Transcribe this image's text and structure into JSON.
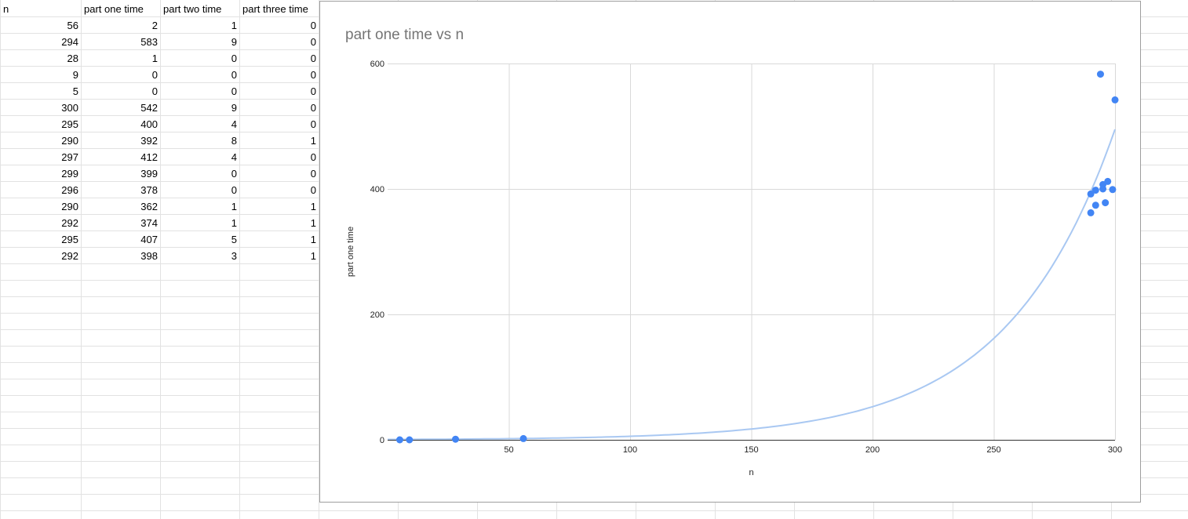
{
  "sheet": {
    "headers": [
      "n",
      "part one time",
      "part two time",
      "part three time"
    ],
    "rows": [
      [
        56,
        2,
        1,
        0
      ],
      [
        294,
        583,
        9,
        0
      ],
      [
        28,
        1,
        0,
        0
      ],
      [
        9,
        0,
        0,
        0
      ],
      [
        5,
        0,
        0,
        0
      ],
      [
        300,
        542,
        9,
        0
      ],
      [
        295,
        400,
        4,
        0
      ],
      [
        290,
        392,
        8,
        1
      ],
      [
        297,
        412,
        4,
        0
      ],
      [
        299,
        399,
        0,
        0
      ],
      [
        296,
        378,
        0,
        0
      ],
      [
        290,
        362,
        1,
        1
      ],
      [
        292,
        374,
        1,
        1
      ],
      [
        295,
        407,
        5,
        1
      ],
      [
        292,
        398,
        3,
        1
      ]
    ]
  },
  "colors": {
    "point": "#4285f4",
    "trendline": "#a9c8f2",
    "gridline": "#d9d9d9",
    "axis": "#333333",
    "title": "#757575",
    "cell_border": "#e2e2e2"
  },
  "chart_data": {
    "type": "scatter",
    "title": "part one time vs n",
    "xlabel": "n",
    "ylabel": "part one time",
    "xlim": [
      0,
      300
    ],
    "ylim": [
      0,
      600
    ],
    "x_ticks": [
      50,
      100,
      150,
      200,
      250,
      300
    ],
    "y_ticks": [
      0,
      200,
      400,
      600
    ],
    "grid": true,
    "legend": "none",
    "series": [
      {
        "points": [
          [
            56,
            2
          ],
          [
            294,
            583
          ],
          [
            28,
            1
          ],
          [
            9,
            0
          ],
          [
            5,
            0
          ],
          [
            300,
            542
          ],
          [
            295,
            400
          ],
          [
            290,
            392
          ],
          [
            297,
            412
          ],
          [
            299,
            399
          ],
          [
            296,
            378
          ],
          [
            290,
            362
          ],
          [
            292,
            374
          ],
          [
            295,
            407
          ],
          [
            292,
            398
          ]
        ]
      }
    ],
    "trendline": {
      "type": "exponential",
      "points": [
        [
          0,
          0.6
        ],
        [
          50,
          1.9
        ],
        [
          100,
          6
        ],
        [
          150,
          18
        ],
        [
          200,
          53
        ],
        [
          250,
          160
        ],
        [
          300,
          495
        ]
      ]
    }
  }
}
